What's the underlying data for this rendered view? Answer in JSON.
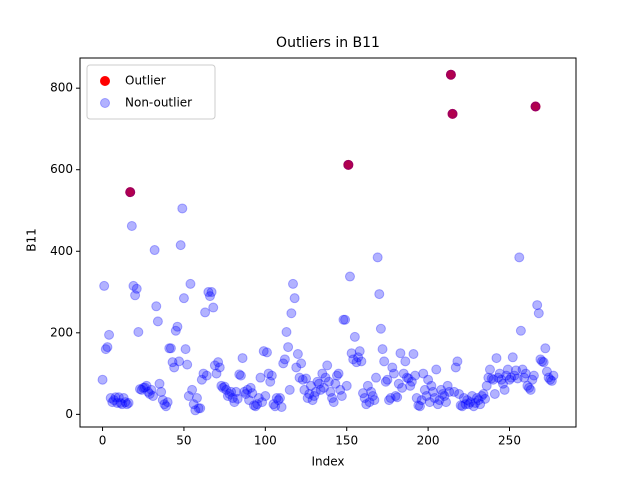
{
  "chart_data": {
    "type": "scatter",
    "title": "Outliers in B11",
    "x_label": "Index",
    "y_label": "B11",
    "xlim": [
      -13.85,
      290.85
    ],
    "ylim": [
      -31,
      874
    ],
    "xticks": [
      0,
      50,
      100,
      150,
      200,
      250
    ],
    "yticks": [
      0,
      200,
      400,
      600,
      800
    ],
    "legend": "upper left",
    "series": [
      {
        "name": "Outlier",
        "color": "#ff0000",
        "alpha": 1,
        "x": [
          17,
          151,
          214,
          215,
          266
        ],
        "values": [
          545,
          612,
          833,
          737,
          755
        ]
      },
      {
        "name": "Non-outlier",
        "color": "#0000ff",
        "alpha": 0.3,
        "x": [
          0,
          1,
          2,
          3,
          4,
          5,
          6,
          7,
          8,
          9,
          10,
          11,
          12,
          13,
          14,
          15,
          16,
          17,
          18,
          19,
          20,
          21,
          22,
          23,
          24,
          25,
          26,
          27,
          28,
          29,
          30,
          31,
          32,
          33,
          34,
          35,
          36,
          37,
          38,
          39,
          40,
          41,
          42,
          43,
          44,
          45,
          46,
          47,
          48,
          49,
          50,
          51,
          52,
          53,
          54,
          55,
          56,
          57,
          58,
          59,
          60,
          61,
          62,
          63,
          64,
          65,
          66,
          67,
          68,
          69,
          70,
          71,
          72,
          73,
          74,
          75,
          76,
          77,
          78,
          79,
          80,
          81,
          82,
          83,
          84,
          85,
          86,
          87,
          88,
          89,
          90,
          91,
          92,
          93,
          94,
          95,
          96,
          97,
          98,
          99,
          100,
          101,
          102,
          103,
          104,
          105,
          106,
          107,
          108,
          109,
          110,
          111,
          112,
          113,
          114,
          115,
          116,
          117,
          118,
          119,
          120,
          121,
          122,
          123,
          124,
          125,
          126,
          127,
          128,
          129,
          130,
          131,
          132,
          133,
          134,
          135,
          136,
          137,
          138,
          139,
          140,
          141,
          142,
          143,
          144,
          145,
          146,
          147,
          148,
          149,
          150,
          151,
          152,
          153,
          154,
          155,
          156,
          157,
          158,
          159,
          160,
          161,
          162,
          163,
          164,
          165,
          166,
          167,
          168,
          169,
          170,
          171,
          172,
          173,
          174,
          175,
          176,
          177,
          178,
          179,
          180,
          181,
          182,
          183,
          184,
          185,
          186,
          187,
          188,
          189,
          190,
          191,
          192,
          193,
          194,
          195,
          196,
          197,
          198,
          199,
          200,
          201,
          202,
          203,
          204,
          205,
          206,
          207,
          208,
          209,
          210,
          211,
          212,
          213,
          214,
          215,
          216,
          217,
          218,
          219,
          220,
          221,
          222,
          223,
          224,
          225,
          226,
          227,
          228,
          229,
          230,
          231,
          232,
          233,
          234,
          235,
          236,
          237,
          238,
          239,
          240,
          241,
          242,
          243,
          244,
          245,
          246,
          247,
          248,
          249,
          250,
          251,
          252,
          253,
          254,
          255,
          256,
          257,
          258,
          259,
          260,
          261,
          262,
          263,
          264,
          265,
          266,
          267,
          268,
          269,
          270,
          271,
          272,
          273,
          274,
          275,
          276,
          277
        ],
        "values": [
          85,
          315,
          160,
          165,
          195,
          40,
          30,
          35,
          42,
          28,
          42,
          28,
          25,
          40,
          30,
          25,
          28,
          545,
          462,
          315,
          292,
          308,
          202,
          62,
          60,
          65,
          66,
          70,
          55,
          50,
          60,
          45,
          403,
          265,
          228,
          75,
          55,
          35,
          25,
          20,
          30,
          162,
          162,
          128,
          115,
          205,
          215,
          130,
          415,
          505,
          285,
          160,
          122,
          45,
          320,
          60,
          25,
          10,
          40,
          15,
          15,
          85,
          100,
          250,
          95,
          300,
          290,
          300,
          262,
          120,
          100,
          128,
          115,
          70,
          65,
          68,
          60,
          45,
          50,
          55,
          40,
          30,
          55,
          38,
          98,
          95,
          138,
          55,
          50,
          60,
          35,
          65,
          52,
          22,
          20,
          25,
          40,
          90,
          30,
          155,
          45,
          152,
          100,
          80,
          95,
          25,
          20,
          40,
          35,
          40,
          18,
          125,
          135,
          202,
          165,
          60,
          248,
          320,
          285,
          115,
          148,
          90,
          125,
          85,
          60,
          88,
          40,
          50,
          70,
          35,
          45,
          55,
          80,
          75,
          60,
          100,
          65,
          90,
          120,
          80,
          55,
          40,
          30,
          75,
          95,
          100,
          60,
          45,
          232,
          232,
          70,
          612,
          338,
          150,
          135,
          190,
          128,
          140,
          155,
          130,
          52,
          40,
          25,
          70,
          30,
          55,
          45,
          35,
          90,
          385,
          295,
          210,
          160,
          130,
          80,
          85,
          35,
          40,
          115,
          100,
          45,
          42,
          75,
          150,
          65,
          100,
          130,
          90,
          88,
          70,
          80,
          148,
          95,
          40,
          22,
          20,
          35,
          100,
          60,
          45,
          85,
          30,
          70,
          55,
          40,
          110,
          25,
          35,
          60,
          50,
          45,
          30,
          70,
          55,
          833,
          737,
          55,
          115,
          130,
          50,
          22,
          20,
          40,
          25,
          35,
          25,
          30,
          45,
          20,
          28,
          40,
          35,
          25,
          45,
          50,
          38,
          70,
          90,
          110,
          88,
          85,
          50,
          138,
          90,
          100,
          85,
          75,
          60,
          95,
          110,
          85,
          90,
          140,
          95,
          108,
          88,
          385,
          205,
          110,
          90,
          100,
          70,
          65,
          60,
          85,
          95,
          755,
          268,
          248,
          135,
          130,
          128,
          162,
          105,
          90,
          85,
          82,
          95
        ]
      }
    ]
  }
}
